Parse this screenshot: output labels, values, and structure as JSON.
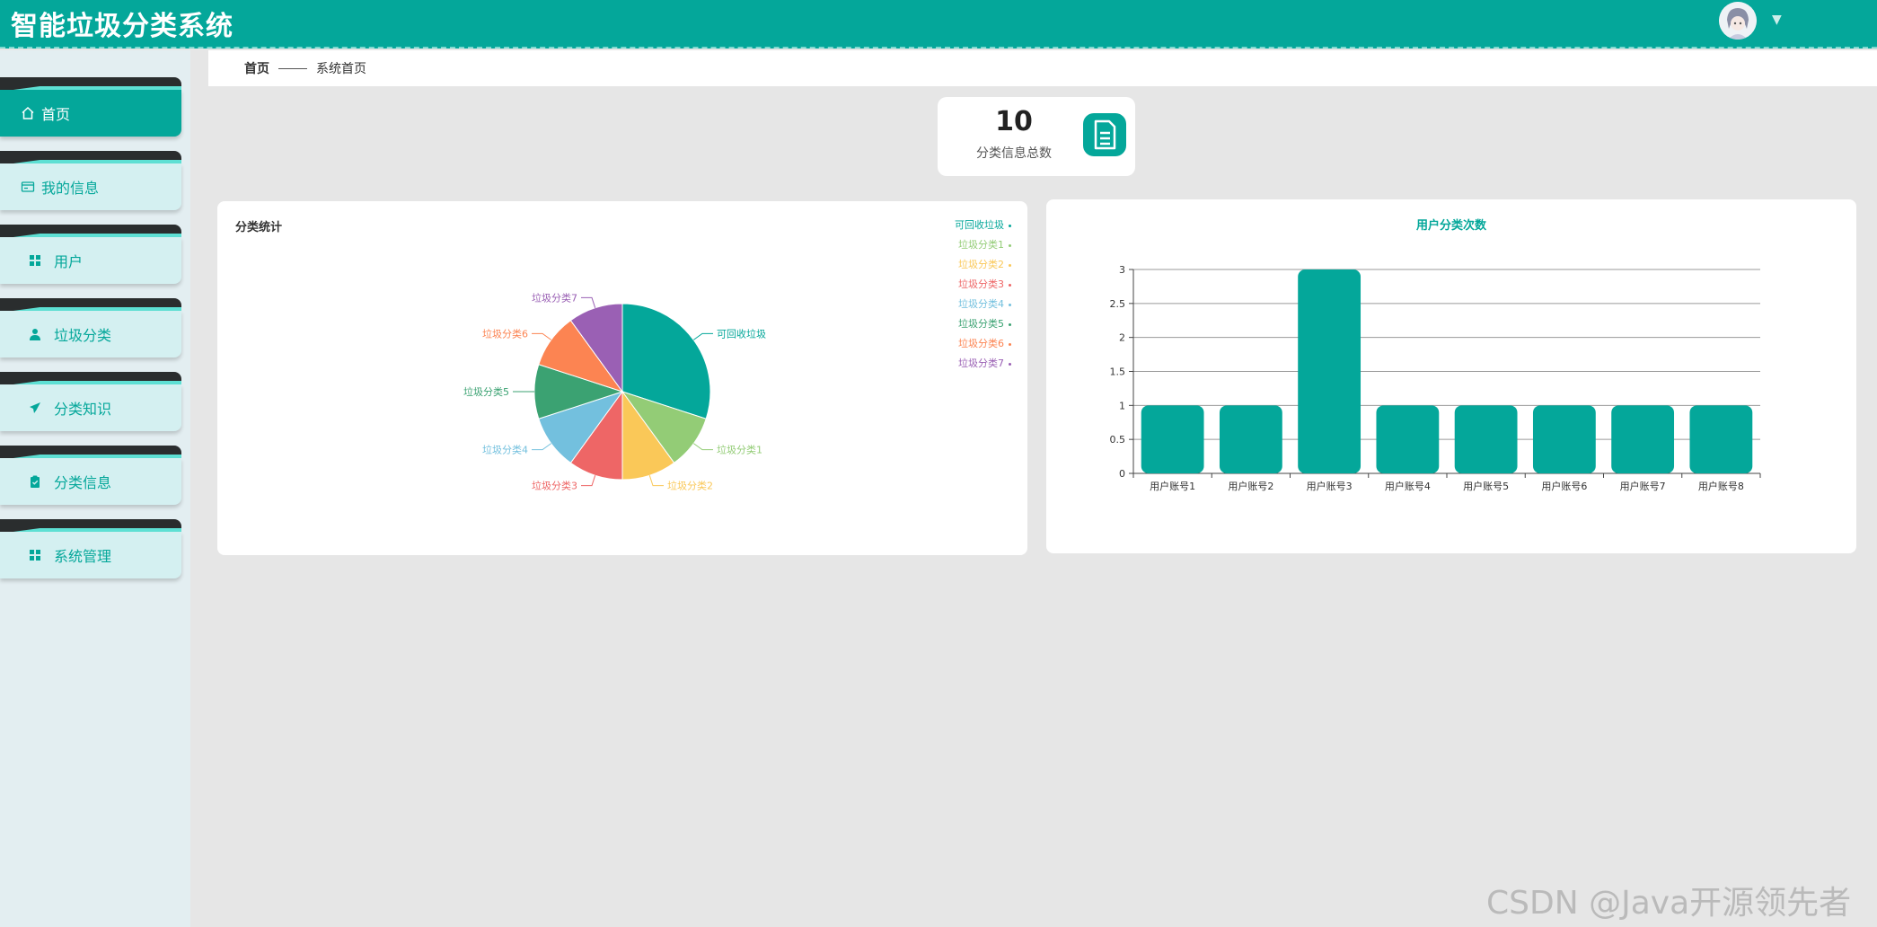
{
  "header": {
    "title": "智能垃圾分类系统"
  },
  "sidebar": {
    "items": [
      {
        "label": "首页",
        "icon": "home-icon",
        "active": true
      },
      {
        "label": "我的信息",
        "icon": "id-card-icon",
        "active": false
      },
      {
        "label": "用户",
        "icon": "grid-icon",
        "active": false
      },
      {
        "label": "垃圾分类",
        "icon": "user-icon",
        "active": false
      },
      {
        "label": "分类知识",
        "icon": "paper-plane-icon",
        "active": false
      },
      {
        "label": "分类信息",
        "icon": "clipboard-icon",
        "active": false
      },
      {
        "label": "系统管理",
        "icon": "grid-icon",
        "active": false
      }
    ]
  },
  "breadcrumb": {
    "home": "首页",
    "current": "系统首页"
  },
  "stat": {
    "value": "10",
    "label": "分类信息总数",
    "icon": "document-icon"
  },
  "colors": {
    "accent": "#04a79a",
    "pie": [
      "#04a79a",
      "#93cc76",
      "#fac858",
      "#ee6666",
      "#73c0de",
      "#3ba272",
      "#fc8452",
      "#9a60b4"
    ]
  },
  "chart_data": [
    {
      "type": "pie",
      "title": "分类统计",
      "categories": [
        "可回收垃圾",
        "垃圾分类1",
        "垃圾分类2",
        "垃圾分类3",
        "垃圾分类4",
        "垃圾分类5",
        "垃圾分类6",
        "垃圾分类7"
      ],
      "values": [
        3,
        1,
        1,
        1,
        1,
        1,
        1,
        1
      ],
      "legend": "top-right"
    },
    {
      "type": "bar",
      "title": "用户分类次数",
      "categories": [
        "用户账号1",
        "用户账号2",
        "用户账号3",
        "用户账号4",
        "用户账号5",
        "用户账号6",
        "用户账号7",
        "用户账号8"
      ],
      "values": [
        1,
        1,
        3,
        1,
        1,
        1,
        1,
        1
      ],
      "yticks": [
        "0",
        "0.5",
        "1",
        "1.5",
        "2",
        "2.5",
        "3"
      ],
      "ylim": [
        0,
        3
      ],
      "grid": true
    }
  ],
  "watermark": "CSDN @Java开源领先者"
}
